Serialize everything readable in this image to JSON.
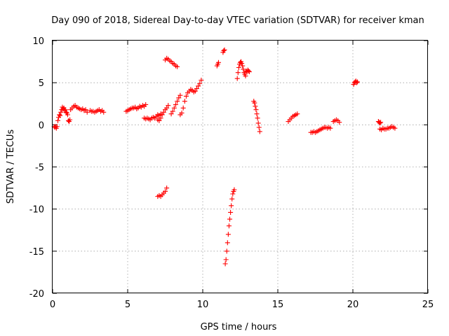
{
  "chart_data": {
    "type": "scatter",
    "title": "Day 090 of 2018, Sidereal Day-to-day VTEC variation (SDTVAR) for receiver kman",
    "xlabel": "GPS time / hours",
    "ylabel": "SDTVAR / TECUs",
    "xlim": [
      0,
      25
    ],
    "ylim": [
      -20,
      10
    ],
    "xticks": [
      0,
      5,
      10,
      15,
      20,
      25
    ],
    "yticks": [
      -20,
      -15,
      -10,
      -5,
      0,
      5,
      10
    ],
    "xtick_labels": [
      "0",
      "5",
      "10",
      "15",
      "20",
      "25"
    ],
    "ytick_labels": [
      "-20",
      "-15",
      "-10",
      "-5",
      "0",
      "5",
      "10"
    ],
    "grid": true,
    "marker": "+",
    "color": "#ff0000",
    "series": [
      {
        "name": "SDTVAR",
        "segments": [
          {
            "x": [
              0.1,
              0.15,
              0.2,
              0.25,
              0.3
            ],
            "y": [
              -0.2,
              -0.3,
              -0.2,
              -0.4,
              -0.2
            ]
          },
          {
            "x": [
              0.35,
              0.4,
              0.45,
              0.5,
              0.55,
              0.6,
              0.65,
              0.7,
              0.75,
              0.8,
              0.85,
              0.9,
              0.95,
              1.0
            ],
            "y": [
              0.5,
              0.9,
              1.2,
              1.1,
              1.5,
              1.8,
              2.1,
              1.9,
              2.0,
              1.7,
              1.8,
              1.5,
              1.4,
              1.2
            ]
          },
          {
            "x": [
              1.05,
              1.1,
              1.15
            ],
            "y": [
              0.5,
              0.4,
              0.6
            ]
          },
          {
            "x": [
              1.2,
              1.3,
              1.4,
              1.5,
              1.6,
              1.7,
              1.8,
              1.9,
              2.0,
              2.1,
              2.2,
              2.3
            ],
            "y": [
              1.8,
              2.0,
              2.2,
              2.3,
              2.1,
              2.0,
              1.9,
              1.8,
              1.9,
              1.7,
              1.8,
              1.5
            ]
          },
          {
            "x": [
              2.5,
              2.6,
              2.7,
              2.8,
              2.9,
              3.0,
              3.1,
              3.2,
              3.3,
              3.4
            ],
            "y": [
              1.7,
              1.6,
              1.6,
              1.5,
              1.6,
              1.7,
              1.8,
              1.6,
              1.7,
              1.5
            ]
          },
          {
            "x": [
              4.9,
              5.0,
              5.1,
              5.2,
              5.3,
              5.4,
              5.5,
              5.6,
              5.7,
              5.8,
              5.9,
              6.0,
              6.1,
              6.2
            ],
            "y": [
              1.6,
              1.7,
              1.8,
              1.9,
              2.0,
              2.0,
              2.1,
              1.9,
              2.0,
              2.2,
              2.1,
              2.3,
              2.2,
              2.4
            ]
          },
          {
            "x": [
              6.1,
              6.2,
              6.3,
              6.4,
              6.5,
              6.6,
              6.7,
              6.8,
              6.9,
              7.0,
              7.1,
              7.2
            ],
            "y": [
              0.8,
              0.7,
              0.8,
              0.7,
              0.6,
              0.8,
              0.9,
              0.8,
              1.0,
              1.2,
              1.1,
              1.3
            ]
          },
          {
            "x": [
              7.0,
              7.1,
              7.2,
              7.3,
              7.4,
              7.5,
              7.6,
              7.7
            ],
            "y": [
              0.6,
              0.5,
              0.8,
              1.2,
              1.5,
              1.8,
              2.0,
              2.3
            ]
          },
          {
            "x": [
              7.0,
              7.1,
              7.2,
              7.3,
              7.4,
              7.5,
              7.6
            ],
            "y": [
              -8.5,
              -8.4,
              -8.5,
              -8.3,
              -8.1,
              -7.9,
              -7.5
            ]
          },
          {
            "x": [
              7.5,
              7.6,
              7.7,
              7.8,
              7.9,
              8.0,
              8.1,
              8.2,
              8.3
            ],
            "y": [
              7.7,
              7.9,
              7.8,
              7.6,
              7.5,
              7.3,
              7.2,
              7.0,
              6.9
            ]
          },
          {
            "x": [
              7.9,
              8.0,
              8.1,
              8.2,
              8.3,
              8.4,
              8.5
            ],
            "y": [
              1.3,
              1.6,
              2.0,
              2.4,
              2.8,
              3.2,
              3.5
            ]
          },
          {
            "x": [
              8.5,
              8.6,
              8.7,
              8.8,
              8.9,
              9.0,
              9.1,
              9.2,
              9.3,
              9.4,
              9.5,
              9.6,
              9.7,
              9.8,
              9.9
            ],
            "y": [
              1.2,
              1.4,
              2.0,
              2.8,
              3.4,
              3.8,
              4.0,
              4.2,
              4.1,
              3.9,
              4.0,
              4.3,
              4.6,
              4.9,
              5.3
            ]
          },
          {
            "x": [
              10.95,
              11.0,
              11.05
            ],
            "y": [
              7.0,
              7.2,
              7.4
            ]
          },
          {
            "x": [
              11.35,
              11.4,
              11.45
            ],
            "y": [
              8.6,
              8.8,
              8.9
            ]
          },
          {
            "x": [
              11.5,
              11.55,
              11.6,
              11.65,
              11.7,
              11.75,
              11.8,
              11.85,
              11.9,
              11.95,
              12.0,
              12.05,
              12.1
            ],
            "y": [
              -16.5,
              -16.0,
              -15.0,
              -14.0,
              -13.0,
              -12.0,
              -11.2,
              -10.4,
              -9.6,
              -8.8,
              -8.2,
              -7.9,
              -7.7
            ]
          },
          {
            "x": [
              12.3,
              12.35,
              12.4,
              12.45,
              12.5,
              12.55,
              12.6,
              12.65,
              12.7,
              12.75,
              12.8
            ],
            "y": [
              5.5,
              6.2,
              6.8,
              7.2,
              7.4,
              7.5,
              7.3,
              7.0,
              6.6,
              6.2,
              6.0
            ]
          },
          {
            "x": [
              12.85,
              12.9,
              12.95,
              13.0,
              13.05,
              13.1
            ],
            "y": [
              5.8,
              6.4,
              6.3,
              6.5,
              6.4,
              6.3
            ]
          },
          {
            "x": [
              13.4,
              13.45,
              13.5,
              13.55,
              13.6,
              13.65,
              13.7,
              13.75,
              13.8
            ],
            "y": [
              2.8,
              2.6,
              2.2,
              1.8,
              1.3,
              0.8,
              0.2,
              -0.3,
              -0.8
            ]
          },
          {
            "x": [
              15.7,
              15.8,
              15.9,
              16.0,
              16.1,
              16.2,
              16.3
            ],
            "y": [
              0.4,
              0.6,
              0.8,
              1.0,
              1.1,
              1.2,
              1.3
            ]
          },
          {
            "x": [
              17.2,
              17.3,
              17.4,
              17.5,
              17.6,
              17.7,
              17.8,
              17.9,
              18.0,
              18.1,
              18.2,
              18.3,
              18.4,
              18.5
            ],
            "y": [
              -0.9,
              -0.9,
              -0.8,
              -0.9,
              -0.8,
              -0.7,
              -0.6,
              -0.5,
              -0.4,
              -0.3,
              -0.3,
              -0.4,
              -0.3,
              -0.4
            ]
          },
          {
            "x": [
              18.7,
              18.8,
              18.9,
              19.0,
              19.1
            ],
            "y": [
              0.4,
              0.5,
              0.6,
              0.5,
              0.3
            ]
          },
          {
            "x": [
              20.05,
              20.1,
              20.15,
              20.2,
              20.25,
              20.3
            ],
            "y": [
              4.8,
              5.0,
              5.1,
              5.2,
              5.0,
              5.1
            ]
          },
          {
            "x": [
              21.7,
              21.75,
              21.8,
              21.85
            ],
            "y": [
              0.4,
              0.3,
              0.2,
              0.3
            ]
          },
          {
            "x": [
              21.8,
              21.9,
              22.0,
              22.1,
              22.2,
              22.3,
              22.4,
              22.5,
              22.6,
              22.7,
              22.8
            ],
            "y": [
              -0.5,
              -0.6,
              -0.4,
              -0.5,
              -0.5,
              -0.4,
              -0.4,
              -0.3,
              -0.2,
              -0.3,
              -0.4
            ]
          }
        ]
      }
    ]
  }
}
